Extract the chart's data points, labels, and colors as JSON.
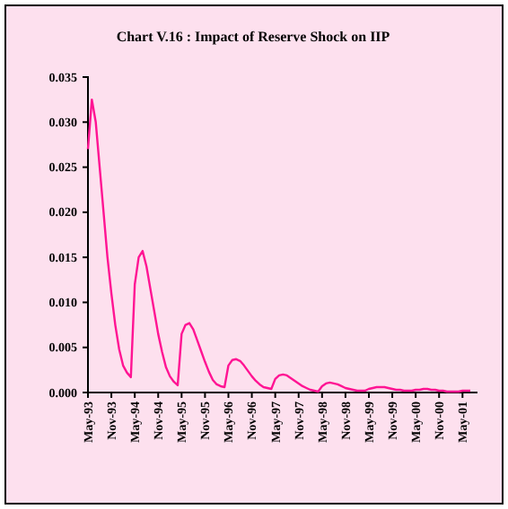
{
  "chart_data": {
    "type": "line",
    "title": "Chart V.16 : Impact of Reserve Shock on IIP",
    "categories": [
      "May-93",
      null,
      null,
      null,
      null,
      null,
      "Nov-93",
      null,
      null,
      null,
      null,
      null,
      "May-94",
      null,
      null,
      null,
      null,
      null,
      "Nov-94",
      null,
      null,
      null,
      null,
      null,
      "May-95",
      null,
      null,
      null,
      null,
      null,
      "Nov-95",
      null,
      null,
      null,
      null,
      null,
      "May-96",
      null,
      null,
      null,
      null,
      null,
      "Nov-96",
      null,
      null,
      null,
      null,
      null,
      "May-97",
      null,
      null,
      null,
      null,
      null,
      "Nov-97",
      null,
      null,
      null,
      null,
      null,
      "May-98",
      null,
      null,
      null,
      null,
      null,
      "Nov-98",
      null,
      null,
      null,
      null,
      null,
      "May-99",
      null,
      null,
      null,
      null,
      null,
      "Nov-99",
      null,
      null,
      null,
      null,
      null,
      "May-00",
      null,
      null,
      null,
      null,
      null,
      "Nov-00",
      null,
      null,
      null,
      null,
      null,
      "May-01",
      null,
      null
    ],
    "series": [
      {
        "color": "#ff1493",
        "values": [
          0.027,
          0.0325,
          0.03,
          0.025,
          0.02,
          0.015,
          0.011,
          0.0075,
          0.0048,
          0.003,
          0.0022,
          0.0017,
          0.012,
          0.015,
          0.0157,
          0.014,
          0.0115,
          0.009,
          0.0065,
          0.0045,
          0.0028,
          0.0018,
          0.0012,
          0.0008,
          0.0065,
          0.0075,
          0.0077,
          0.007,
          0.0058,
          0.0046,
          0.0034,
          0.0023,
          0.0014,
          0.0009,
          0.0007,
          0.0006,
          0.003,
          0.0036,
          0.0037,
          0.0035,
          0.003,
          0.0024,
          0.0018,
          0.0013,
          0.0009,
          0.0006,
          0.0005,
          0.0004,
          0.0015,
          0.0019,
          0.002,
          0.0019,
          0.0016,
          0.0013,
          0.001,
          0.0007,
          0.0005,
          0.0003,
          0.0002,
          0.0001,
          0.0007,
          0.001,
          0.0011,
          0.001,
          0.0009,
          0.0007,
          0.0005,
          0.0004,
          0.0003,
          0.0002,
          0.0002,
          0.0002,
          0.0004,
          0.0005,
          0.0006,
          0.0006,
          0.0006,
          0.0005,
          0.0004,
          0.0003,
          0.0003,
          0.0002,
          0.0002,
          0.0002,
          0.0003,
          0.0003,
          0.0004,
          0.0004,
          0.0003,
          0.0003,
          0.0002,
          0.0002,
          0.0001,
          0.0001,
          0.0001,
          0.0001,
          0.0002,
          0.0002,
          0.0002
        ]
      }
    ],
    "ylim": [
      0,
      0.035
    ],
    "yticks": [
      {
        "value": 0,
        "label": "0.000"
      },
      {
        "value": 0.005,
        "label": "0.005"
      },
      {
        "value": 0.01,
        "label": "0.010"
      },
      {
        "value": 0.015,
        "label": "0.015"
      },
      {
        "value": 0.02,
        "label": "0.020"
      },
      {
        "value": 0.025,
        "label": "0.025"
      },
      {
        "value": 0.03,
        "label": "0.030"
      },
      {
        "value": 0.035,
        "label": "0.035"
      }
    ],
    "grid": false,
    "marker": "none",
    "line_style": "solid"
  }
}
